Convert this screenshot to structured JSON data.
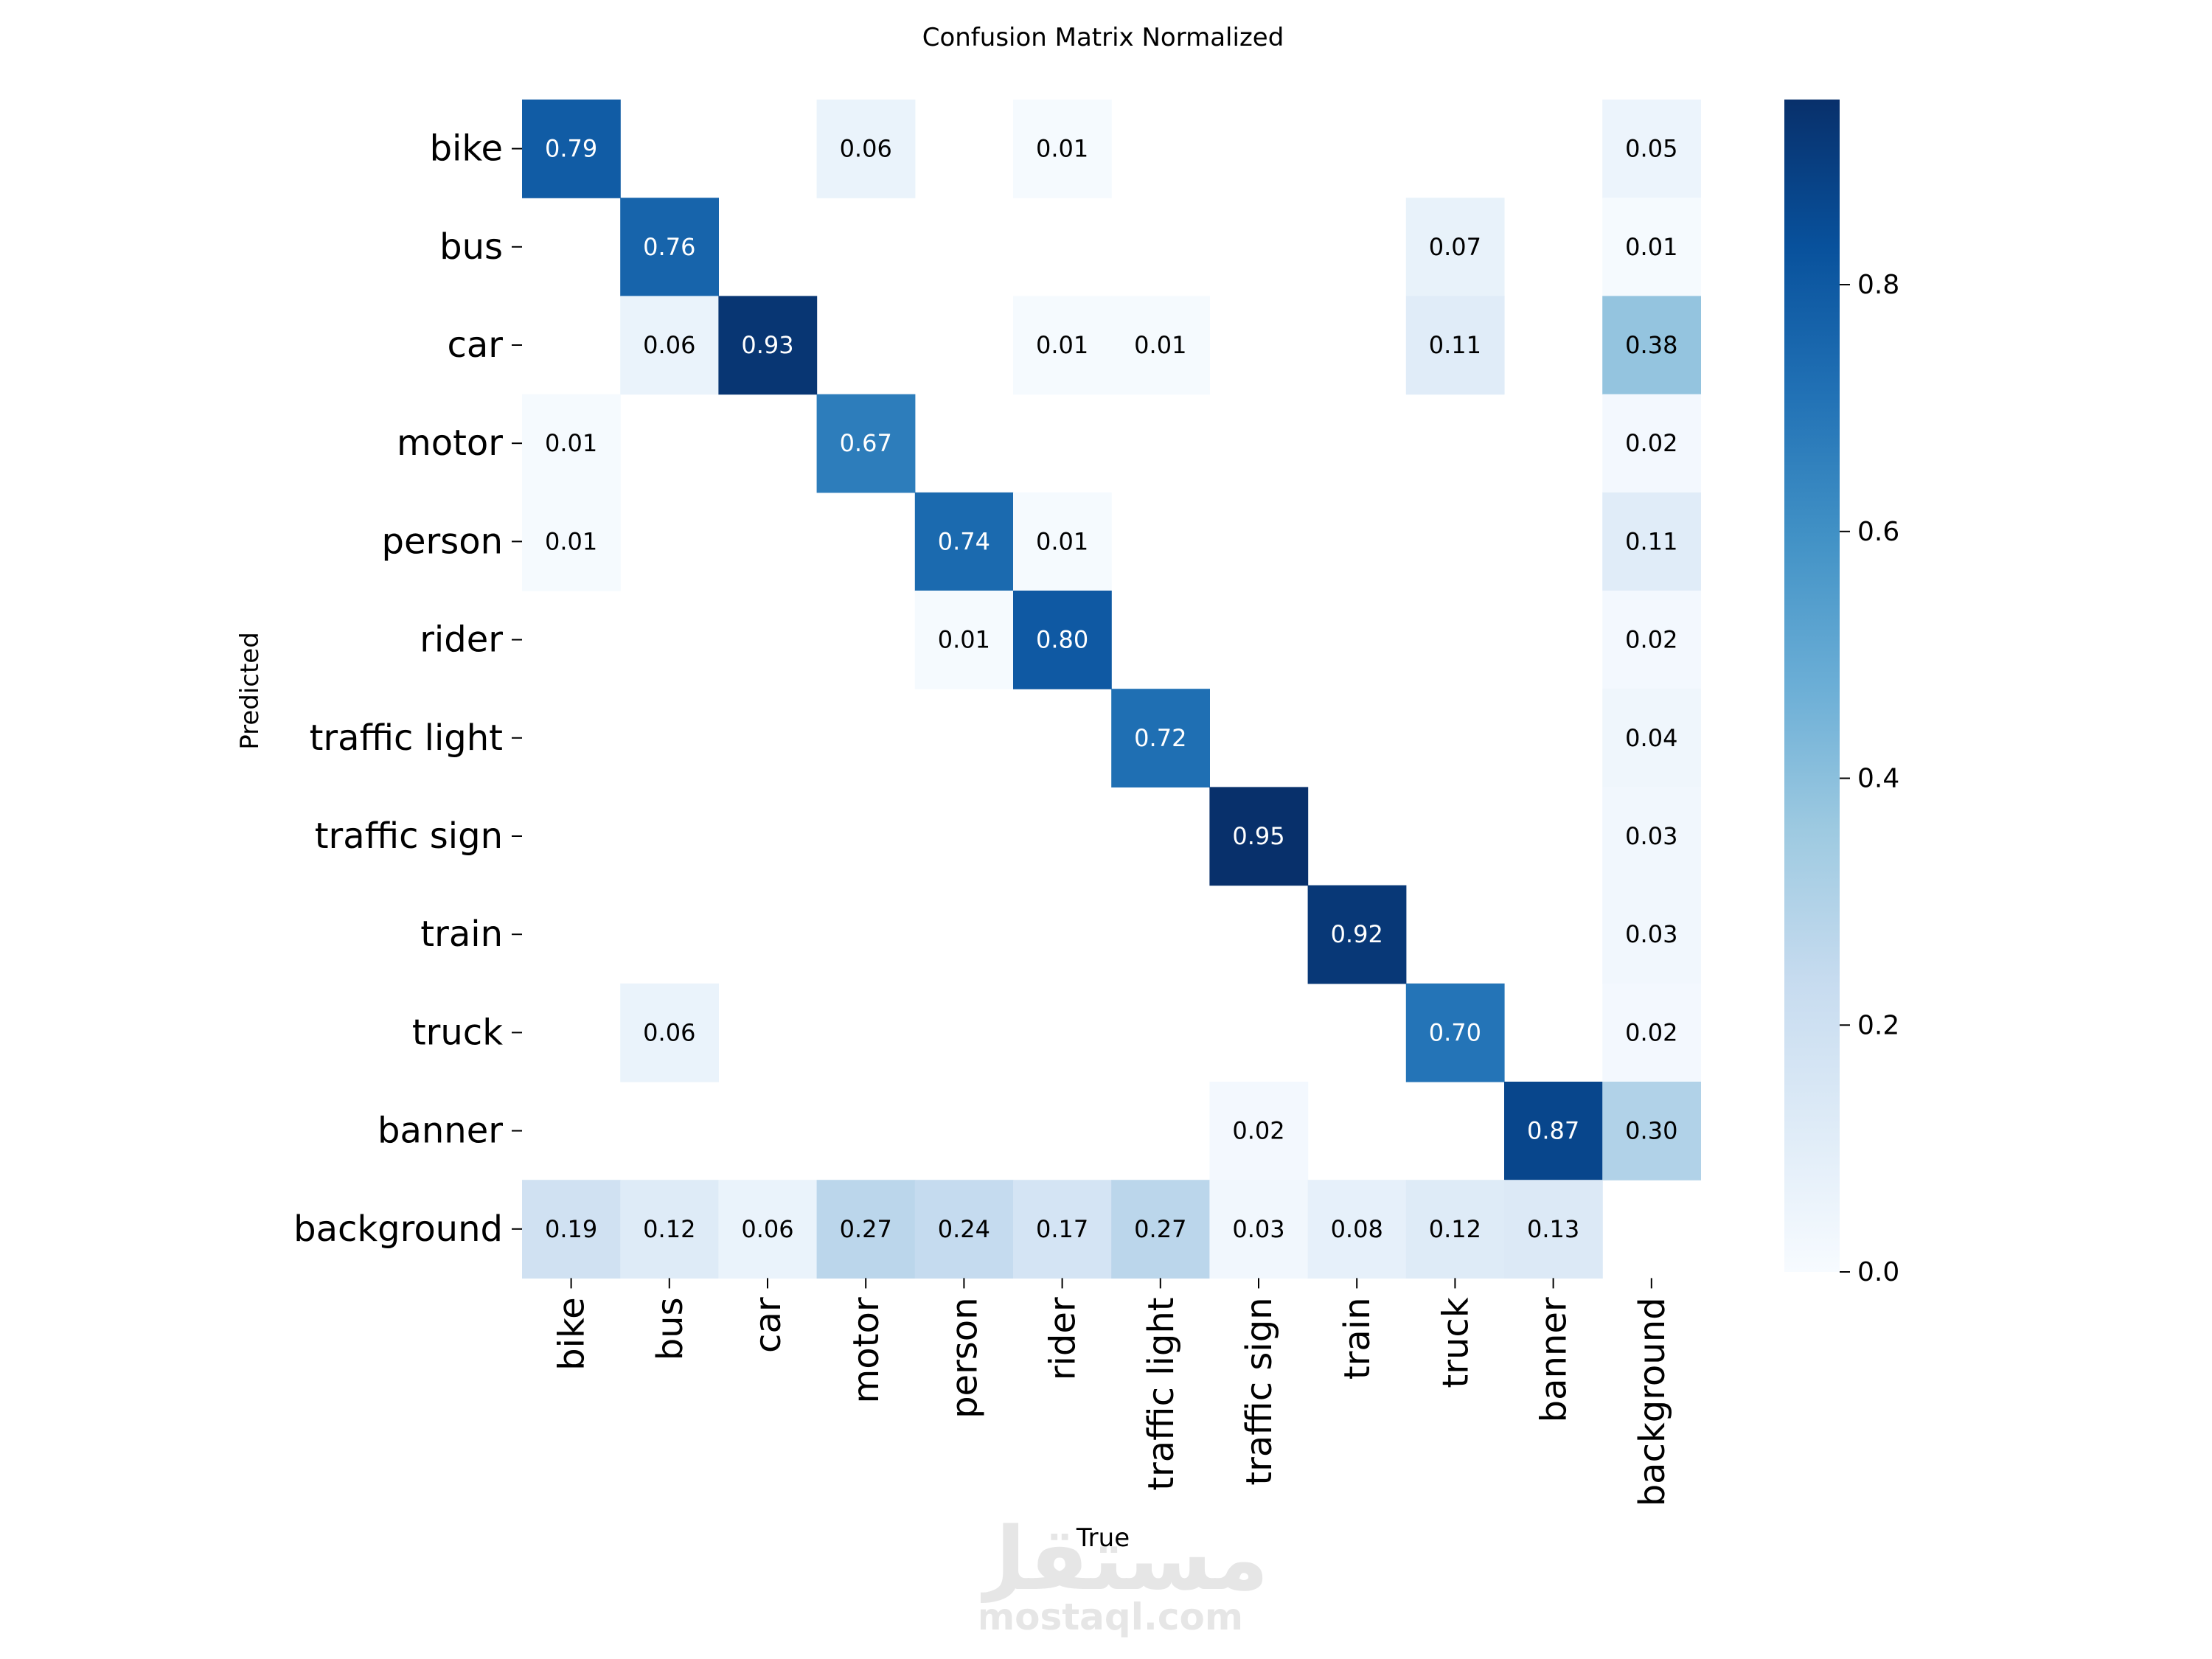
{
  "chart_data": {
    "type": "heatmap",
    "title": "Confusion Matrix Normalized",
    "xlabel": "True",
    "ylabel": "Predicted",
    "x_categories": [
      "bike",
      "bus",
      "car",
      "motor",
      "person",
      "rider",
      "traffic light",
      "traffic sign",
      "train",
      "truck",
      "banner",
      "background"
    ],
    "y_categories": [
      "bike",
      "bus",
      "car",
      "motor",
      "person",
      "rider",
      "traffic light",
      "traffic sign",
      "train",
      "truck",
      "banner",
      "background"
    ],
    "values": [
      [
        0.79,
        null,
        null,
        0.06,
        null,
        0.01,
        null,
        null,
        null,
        null,
        null,
        0.05
      ],
      [
        null,
        0.76,
        null,
        null,
        null,
        null,
        null,
        null,
        null,
        0.07,
        null,
        0.01
      ],
      [
        null,
        0.06,
        0.93,
        null,
        null,
        0.01,
        0.01,
        null,
        null,
        0.11,
        null,
        0.38
      ],
      [
        0.01,
        null,
        null,
        0.67,
        null,
        null,
        null,
        null,
        null,
        null,
        null,
        0.02
      ],
      [
        0.01,
        null,
        null,
        null,
        0.74,
        0.01,
        null,
        null,
        null,
        null,
        null,
        0.11
      ],
      [
        null,
        null,
        null,
        null,
        0.01,
        0.8,
        null,
        null,
        null,
        null,
        null,
        0.02
      ],
      [
        null,
        null,
        null,
        null,
        null,
        null,
        0.72,
        null,
        null,
        null,
        null,
        0.04
      ],
      [
        null,
        null,
        null,
        null,
        null,
        null,
        null,
        0.95,
        null,
        null,
        null,
        0.03
      ],
      [
        null,
        null,
        null,
        null,
        null,
        null,
        null,
        null,
        0.92,
        null,
        null,
        0.03
      ],
      [
        null,
        0.06,
        null,
        null,
        null,
        null,
        null,
        null,
        null,
        0.7,
        null,
        0.02
      ],
      [
        null,
        null,
        null,
        null,
        null,
        null,
        null,
        0.02,
        null,
        null,
        0.87,
        0.3
      ],
      [
        0.19,
        0.12,
        0.06,
        0.27,
        0.24,
        0.17,
        0.27,
        0.03,
        0.08,
        0.12,
        0.13,
        null
      ]
    ],
    "colormap": "Blues",
    "vmin": 0.0,
    "vmax": 0.95,
    "colorbar_ticks": [
      0.0,
      0.2,
      0.4,
      0.6,
      0.8
    ],
    "colorbar_tick_labels": [
      "0.0",
      "0.2",
      "0.4",
      "0.6",
      "0.8"
    ],
    "grid": false
  },
  "watermark": {
    "arabic_logo": "مستقل",
    "site": "mostaql.com"
  }
}
